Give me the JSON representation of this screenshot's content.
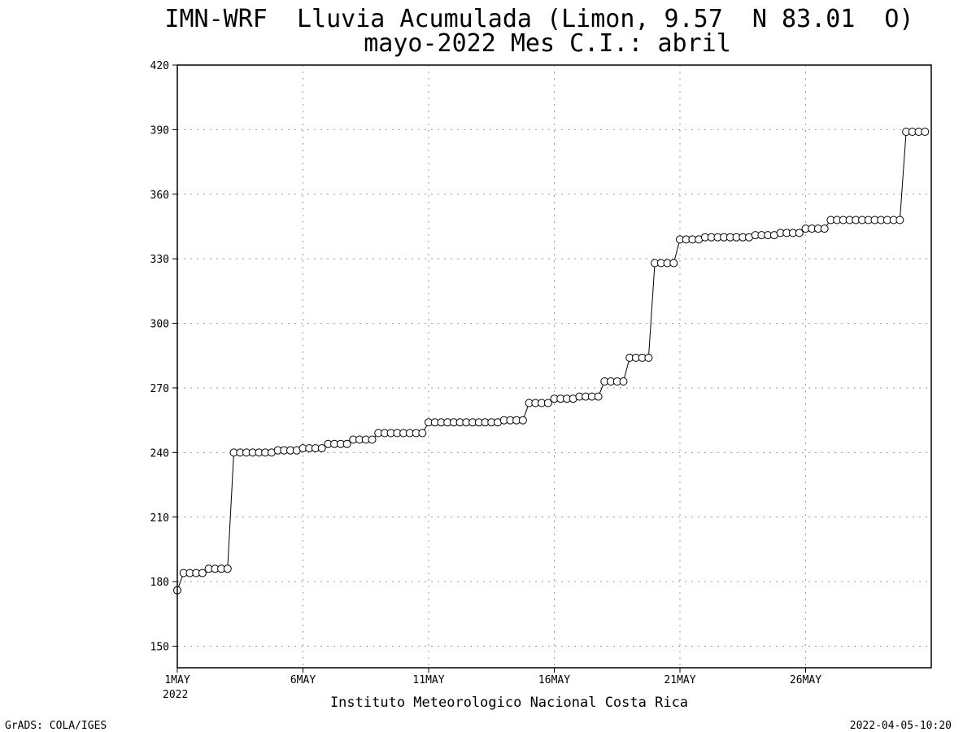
{
  "chart_data": {
    "type": "line",
    "title": "IMN-WRF  Lluvia Acumulada (Limon, 9.57  N 83.01  O)",
    "subtitle": "mayo-2022 Mes C.I.: abril",
    "xlabel": "Instituto Meteorologico Nacional Costa Rica",
    "ylabel": "",
    "ylim": [
      140,
      420
    ],
    "yticks": [
      "150",
      "180",
      "210",
      "240",
      "270",
      "300",
      "330",
      "360",
      "390",
      "420"
    ],
    "x_unit": "day of May 2022",
    "xlim": [
      1,
      31
    ],
    "xticks": [
      {
        "day": 1,
        "label": "1MAY"
      },
      {
        "day": 6,
        "label": "6MAY"
      },
      {
        "day": 11,
        "label": "11MAY"
      },
      {
        "day": 16,
        "label": "16MAY"
      },
      {
        "day": 21,
        "label": "21MAY"
      },
      {
        "day": 26,
        "label": "26MAY"
      }
    ],
    "xtick_year": "2022",
    "grid": true,
    "line_color": "#000000",
    "marker": "open-circle",
    "series": [
      {
        "values_step_hours": 6,
        "values": [
          176,
          184,
          184,
          184,
          184,
          186,
          186,
          186,
          186,
          240,
          240,
          240,
          240,
          240,
          240,
          240,
          241,
          241,
          241,
          241,
          242,
          242,
          242,
          242,
          244,
          244,
          244,
          244,
          246,
          246,
          246,
          246,
          249,
          249,
          249,
          249,
          249,
          249,
          249,
          249,
          254,
          254,
          254,
          254,
          254,
          254,
          254,
          254,
          254,
          254,
          254,
          254,
          255,
          255,
          255,
          255,
          263,
          263,
          263,
          263,
          265,
          265,
          265,
          265,
          266,
          266,
          266,
          266,
          273,
          273,
          273,
          273,
          284,
          284,
          284,
          284,
          328,
          328,
          328,
          328,
          339,
          339,
          339,
          339,
          340,
          340,
          340,
          340,
          340,
          340,
          340,
          340,
          341,
          341,
          341,
          341,
          342,
          342,
          342,
          342,
          344,
          344,
          344,
          344,
          348,
          348,
          348,
          348,
          348,
          348,
          348,
          348,
          348,
          348,
          348,
          348,
          389,
          389,
          389,
          389
        ]
      }
    ]
  },
  "footer": {
    "left": "GrADS: COLA/IGES",
    "right": "2022-04-05-10:20"
  }
}
